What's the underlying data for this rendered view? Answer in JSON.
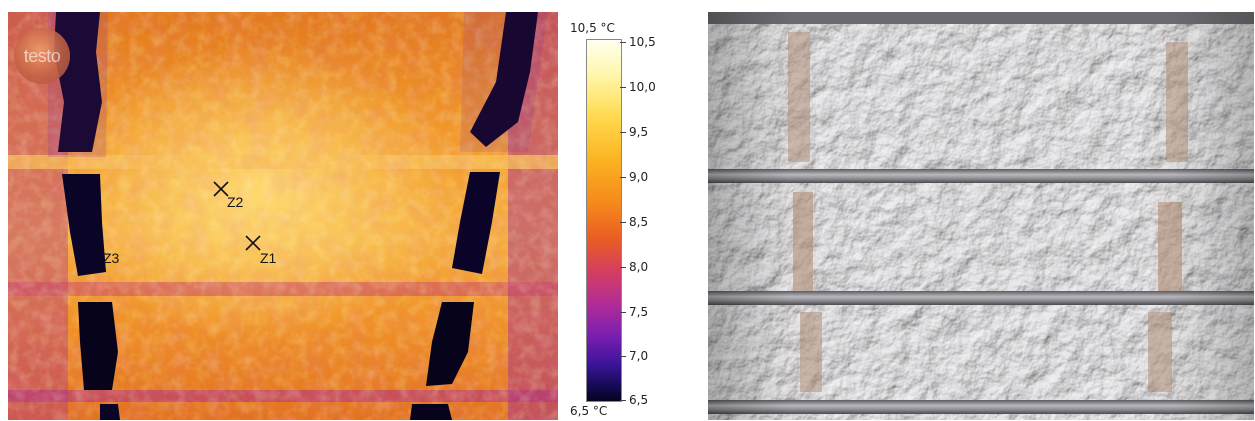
{
  "thermal_image": {
    "logo_text": "testo",
    "markers": [
      {
        "label": "Z1"
      },
      {
        "label": "Z2"
      },
      {
        "label": "Z3"
      }
    ]
  },
  "color_scale": {
    "max_label": "10,5 °C",
    "min_label": "6,5 °C",
    "ticks": [
      "10,5",
      "10,0",
      "9,5",
      "9,0",
      "8,5",
      "8,0",
      "7,5",
      "7,0",
      "6,5"
    ]
  },
  "photo": {
    "icon": "insulation-photo"
  }
}
